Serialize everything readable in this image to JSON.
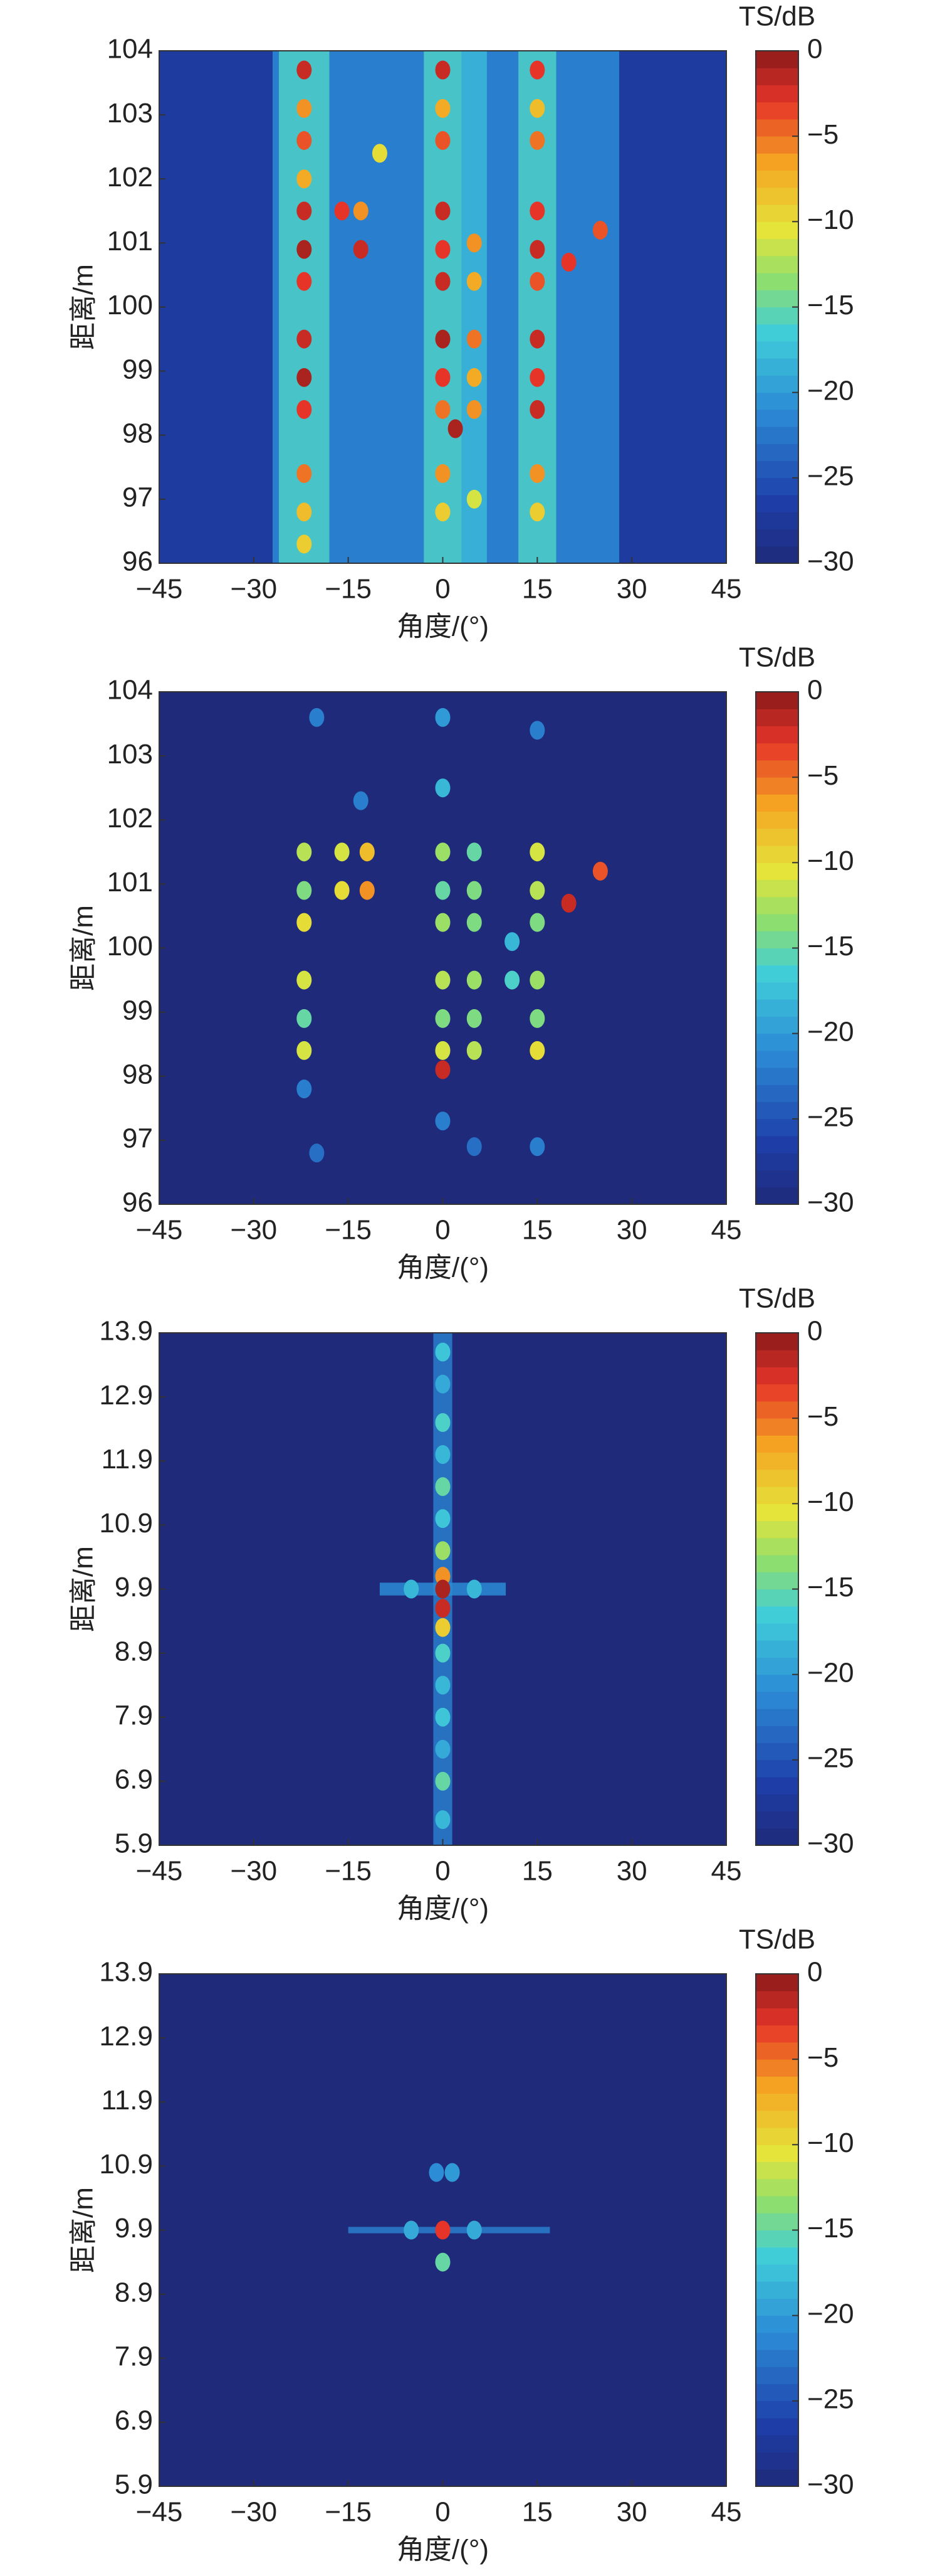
{
  "chart_data": [
    {
      "type": "heatmap",
      "xlabel": "角度/(°)",
      "ylabel": "距离/m",
      "colorbar_title": "TS/dB",
      "colormap": "jet",
      "xlim": [
        -45,
        45
      ],
      "ylim": [
        96,
        104
      ],
      "xticks": [
        {
          "value": -45,
          "label": "−45"
        },
        {
          "value": -30,
          "label": "−30"
        },
        {
          "value": -15,
          "label": "−15"
        },
        0,
        15,
        30,
        45
      ],
      "yticks": [
        96,
        97,
        98,
        99,
        100,
        101,
        102,
        103,
        104
      ],
      "clim": [
        -30,
        0
      ],
      "cticks": [
        0,
        {
          "value": -5,
          "label": "−5"
        },
        {
          "value": -10,
          "label": "−10"
        },
        {
          "value": -15,
          "label": "−15"
        },
        {
          "value": -20,
          "label": "−20"
        },
        {
          "value": -25,
          "label": "−25"
        },
        {
          "value": -30,
          "label": "−30"
        }
      ],
      "background": -27,
      "regions": [
        {
          "x": [
            -27,
            28
          ],
          "y": [
            96,
            104
          ],
          "ts": -21
        },
        {
          "x": [
            -26,
            -18
          ],
          "y": [
            96,
            104
          ],
          "ts": -16
        },
        {
          "x": [
            -3,
            3
          ],
          "y": [
            96,
            104
          ],
          "ts": -16
        },
        {
          "x": [
            3,
            7
          ],
          "y": [
            96,
            104
          ],
          "ts": -18
        },
        {
          "x": [
            12,
            18
          ],
          "y": [
            96,
            104
          ],
          "ts": -16
        }
      ],
      "points": [
        {
          "x": -22,
          "y": 103.7,
          "ts": -2
        },
        {
          "x": -22,
          "y": 103.1,
          "ts": -6
        },
        {
          "x": -22,
          "y": 102.6,
          "ts": -4
        },
        {
          "x": -22,
          "y": 102.0,
          "ts": -7
        },
        {
          "x": -22,
          "y": 101.5,
          "ts": -2
        },
        {
          "x": -22,
          "y": 100.9,
          "ts": -1
        },
        {
          "x": -22,
          "y": 100.4,
          "ts": -3
        },
        {
          "x": -22,
          "y": 99.5,
          "ts": -2
        },
        {
          "x": -22,
          "y": 98.9,
          "ts": -1
        },
        {
          "x": -22,
          "y": 98.4,
          "ts": -3
        },
        {
          "x": -22,
          "y": 97.4,
          "ts": -5
        },
        {
          "x": -22,
          "y": 96.8,
          "ts": -8
        },
        {
          "x": -22,
          "y": 96.3,
          "ts": -9
        },
        {
          "x": -16,
          "y": 101.5,
          "ts": -3
        },
        {
          "x": -13,
          "y": 100.9,
          "ts": -2
        },
        {
          "x": -13,
          "y": 101.5,
          "ts": -6
        },
        {
          "x": -10,
          "y": 102.4,
          "ts": -10
        },
        {
          "x": 0,
          "y": 103.7,
          "ts": -2
        },
        {
          "x": 0,
          "y": 103.1,
          "ts": -7
        },
        {
          "x": 0,
          "y": 102.6,
          "ts": -4
        },
        {
          "x": 0,
          "y": 101.5,
          "ts": -2
        },
        {
          "x": 0,
          "y": 100.9,
          "ts": -3
        },
        {
          "x": 0,
          "y": 100.4,
          "ts": -2
        },
        {
          "x": 0,
          "y": 99.5,
          "ts": -1
        },
        {
          "x": 0,
          "y": 98.9,
          "ts": -3
        },
        {
          "x": 0,
          "y": 98.4,
          "ts": -5
        },
        {
          "x": 0,
          "y": 97.4,
          "ts": -6
        },
        {
          "x": 0,
          "y": 96.8,
          "ts": -9
        },
        {
          "x": 2,
          "y": 98.1,
          "ts": -1
        },
        {
          "x": 5,
          "y": 101.0,
          "ts": -6
        },
        {
          "x": 5,
          "y": 100.4,
          "ts": -7
        },
        {
          "x": 5,
          "y": 99.5,
          "ts": -5
        },
        {
          "x": 5,
          "y": 98.9,
          "ts": -7
        },
        {
          "x": 5,
          "y": 98.4,
          "ts": -6
        },
        {
          "x": 5,
          "y": 97.0,
          "ts": -11
        },
        {
          "x": 15,
          "y": 103.7,
          "ts": -3
        },
        {
          "x": 15,
          "y": 103.1,
          "ts": -8
        },
        {
          "x": 15,
          "y": 102.6,
          "ts": -5
        },
        {
          "x": 15,
          "y": 101.5,
          "ts": -3
        },
        {
          "x": 15,
          "y": 100.9,
          "ts": -2
        },
        {
          "x": 15,
          "y": 100.4,
          "ts": -4
        },
        {
          "x": 15,
          "y": 99.5,
          "ts": -2
        },
        {
          "x": 15,
          "y": 98.9,
          "ts": -3
        },
        {
          "x": 15,
          "y": 98.4,
          "ts": -2
        },
        {
          "x": 15,
          "y": 97.4,
          "ts": -6
        },
        {
          "x": 15,
          "y": 96.8,
          "ts": -9
        },
        {
          "x": 20,
          "y": 100.7,
          "ts": -3
        },
        {
          "x": 25,
          "y": 101.2,
          "ts": -4
        }
      ]
    },
    {
      "type": "heatmap",
      "xlabel": "角度/(°)",
      "ylabel": "距离/m",
      "colorbar_title": "TS/dB",
      "colormap": "jet",
      "xlim": [
        -45,
        45
      ],
      "ylim": [
        96,
        104
      ],
      "xticks": [
        {
          "value": -45,
          "label": "−45"
        },
        {
          "value": -30,
          "label": "−30"
        },
        {
          "value": -15,
          "label": "−15"
        },
        0,
        15,
        30,
        45
      ],
      "yticks": [
        96,
        97,
        98,
        99,
        100,
        101,
        102,
        103,
        104
      ],
      "clim": [
        -30,
        0
      ],
      "cticks": [
        0,
        {
          "value": -5,
          "label": "−5"
        },
        {
          "value": -10,
          "label": "−10"
        },
        {
          "value": -15,
          "label": "−15"
        },
        {
          "value": -20,
          "label": "−20"
        },
        {
          "value": -25,
          "label": "−25"
        },
        {
          "value": -30,
          "label": "−30"
        }
      ],
      "background": -30,
      "regions": [],
      "points": [
        {
          "x": -20,
          "y": 103.6,
          "ts": -22
        },
        {
          "x": -22,
          "y": 101.5,
          "ts": -12
        },
        {
          "x": -22,
          "y": 100.9,
          "ts": -14
        },
        {
          "x": -22,
          "y": 100.4,
          "ts": -10
        },
        {
          "x": -22,
          "y": 99.5,
          "ts": -11
        },
        {
          "x": -22,
          "y": 98.9,
          "ts": -15
        },
        {
          "x": -22,
          "y": 98.4,
          "ts": -11
        },
        {
          "x": -22,
          "y": 97.8,
          "ts": -22
        },
        {
          "x": -20,
          "y": 96.8,
          "ts": -23
        },
        {
          "x": -16,
          "y": 101.5,
          "ts": -11
        },
        {
          "x": -16,
          "y": 100.9,
          "ts": -10
        },
        {
          "x": -12,
          "y": 101.5,
          "ts": -8
        },
        {
          "x": -12,
          "y": 100.9,
          "ts": -6
        },
        {
          "x": -13,
          "y": 102.3,
          "ts": -22
        },
        {
          "x": 0,
          "y": 103.6,
          "ts": -20
        },
        {
          "x": 0,
          "y": 102.5,
          "ts": -18
        },
        {
          "x": 0,
          "y": 101.5,
          "ts": -13
        },
        {
          "x": 0,
          "y": 100.9,
          "ts": -15
        },
        {
          "x": 0,
          "y": 100.4,
          "ts": -13
        },
        {
          "x": 0,
          "y": 99.5,
          "ts": -12
        },
        {
          "x": 0,
          "y": 98.9,
          "ts": -14
        },
        {
          "x": 0,
          "y": 98.4,
          "ts": -11
        },
        {
          "x": 0,
          "y": 98.1,
          "ts": -2
        },
        {
          "x": 0,
          "y": 97.3,
          "ts": -22
        },
        {
          "x": 5,
          "y": 101.5,
          "ts": -15
        },
        {
          "x": 5,
          "y": 100.9,
          "ts": -14
        },
        {
          "x": 5,
          "y": 100.4,
          "ts": -14
        },
        {
          "x": 5,
          "y": 99.5,
          "ts": -13
        },
        {
          "x": 5,
          "y": 98.9,
          "ts": -14
        },
        {
          "x": 5,
          "y": 98.4,
          "ts": -12
        },
        {
          "x": 5,
          "y": 96.9,
          "ts": -23
        },
        {
          "x": 11,
          "y": 99.5,
          "ts": -16
        },
        {
          "x": 11,
          "y": 100.1,
          "ts": -18
        },
        {
          "x": 15,
          "y": 103.4,
          "ts": -22
        },
        {
          "x": 15,
          "y": 101.5,
          "ts": -11
        },
        {
          "x": 15,
          "y": 100.9,
          "ts": -12
        },
        {
          "x": 15,
          "y": 100.4,
          "ts": -14
        },
        {
          "x": 15,
          "y": 99.5,
          "ts": -13
        },
        {
          "x": 15,
          "y": 98.9,
          "ts": -14
        },
        {
          "x": 15,
          "y": 98.4,
          "ts": -10
        },
        {
          "x": 15,
          "y": 96.9,
          "ts": -22
        },
        {
          "x": 20,
          "y": 100.7,
          "ts": -2
        },
        {
          "x": 25,
          "y": 101.2,
          "ts": -4
        }
      ]
    },
    {
      "type": "heatmap",
      "xlabel": "角度/(°)",
      "ylabel": "距离/m",
      "colorbar_title": "TS/dB",
      "colormap": "jet",
      "xlim": [
        -45,
        45
      ],
      "ylim": [
        5.9,
        13.9
      ],
      "xticks": [
        {
          "value": -45,
          "label": "−45"
        },
        {
          "value": -30,
          "label": "−30"
        },
        {
          "value": -15,
          "label": "−15"
        },
        0,
        15,
        30,
        45
      ],
      "yticks": [
        5.9,
        6.9,
        7.9,
        8.9,
        9.9,
        10.9,
        11.9,
        12.9,
        13.9
      ],
      "clim": [
        -30,
        0
      ],
      "cticks": [
        0,
        {
          "value": -5,
          "label": "−5"
        },
        {
          "value": -10,
          "label": "−10"
        },
        {
          "value": -15,
          "label": "−15"
        },
        {
          "value": -20,
          "label": "−20"
        },
        {
          "value": -25,
          "label": "−25"
        },
        {
          "value": -30,
          "label": "−30"
        }
      ],
      "background": -30,
      "regions": [
        {
          "x": [
            -1.5,
            1.5
          ],
          "y": [
            5.9,
            13.9
          ],
          "ts": -22
        },
        {
          "x": [
            -10,
            10
          ],
          "y": [
            9.8,
            10.0
          ],
          "ts": -21
        }
      ],
      "points": [
        {
          "x": 0,
          "y": 13.6,
          "ts": -17
        },
        {
          "x": 0,
          "y": 13.1,
          "ts": -19
        },
        {
          "x": 0,
          "y": 12.5,
          "ts": -16
        },
        {
          "x": 0,
          "y": 12.0,
          "ts": -18
        },
        {
          "x": 0,
          "y": 11.5,
          "ts": -15
        },
        {
          "x": 0,
          "y": 11.0,
          "ts": -17
        },
        {
          "x": 0,
          "y": 10.5,
          "ts": -13
        },
        {
          "x": 0,
          "y": 10.1,
          "ts": -6
        },
        {
          "x": 0,
          "y": 9.9,
          "ts": -1
        },
        {
          "x": 0,
          "y": 9.6,
          "ts": -2
        },
        {
          "x": 0,
          "y": 9.3,
          "ts": -9
        },
        {
          "x": 0,
          "y": 8.9,
          "ts": -16
        },
        {
          "x": 0,
          "y": 8.4,
          "ts": -18
        },
        {
          "x": 0,
          "y": 7.9,
          "ts": -17
        },
        {
          "x": 0,
          "y": 7.4,
          "ts": -19
        },
        {
          "x": 0,
          "y": 6.9,
          "ts": -15
        },
        {
          "x": 0,
          "y": 6.3,
          "ts": -18
        },
        {
          "x": -5,
          "y": 9.9,
          "ts": -18
        },
        {
          "x": 5,
          "y": 9.9,
          "ts": -18
        }
      ]
    },
    {
      "type": "heatmap",
      "xlabel": "角度/(°)",
      "ylabel": "距离/m",
      "colorbar_title": "TS/dB",
      "colormap": "jet",
      "xlim": [
        -45,
        45
      ],
      "ylim": [
        5.9,
        13.9
      ],
      "xticks": [
        {
          "value": -45,
          "label": "−45"
        },
        {
          "value": -30,
          "label": "−30"
        },
        {
          "value": -15,
          "label": "−15"
        },
        0,
        15,
        30,
        45
      ],
      "yticks": [
        5.9,
        6.9,
        7.9,
        8.9,
        9.9,
        10.9,
        11.9,
        12.9,
        13.9
      ],
      "clim": [
        -30,
        0
      ],
      "cticks": [
        0,
        {
          "value": -5,
          "label": "−5"
        },
        {
          "value": -10,
          "label": "−10"
        },
        {
          "value": -15,
          "label": "−15"
        },
        {
          "value": -20,
          "label": "−20"
        },
        {
          "value": -25,
          "label": "−25"
        },
        {
          "value": -30,
          "label": "−30"
        }
      ],
      "background": -30,
      "regions": [
        {
          "x": [
            -15,
            17
          ],
          "y": [
            9.85,
            9.95
          ],
          "ts": -22
        }
      ],
      "points": [
        {
          "x": 0,
          "y": 9.9,
          "ts": -3
        },
        {
          "x": 0,
          "y": 9.4,
          "ts": -15
        },
        {
          "x": -1,
          "y": 10.8,
          "ts": -21
        },
        {
          "x": 1.5,
          "y": 10.8,
          "ts": -20
        },
        {
          "x": -5,
          "y": 9.9,
          "ts": -19
        },
        {
          "x": 5,
          "y": 9.9,
          "ts": -19
        }
      ]
    }
  ]
}
